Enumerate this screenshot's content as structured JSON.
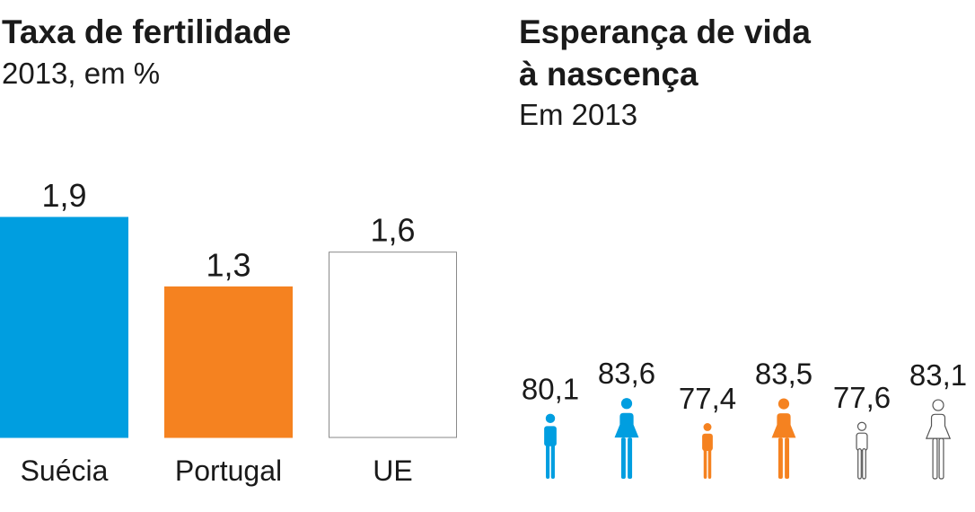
{
  "chart_data": [
    {
      "type": "bar",
      "title": "Taxa de fertilidade",
      "subtitle": "2013, em %",
      "categories": [
        "Suécia",
        "Portugal",
        "UE"
      ],
      "values": [
        1.9,
        1.3,
        1.6
      ],
      "value_labels": [
        "1,9",
        "1,3",
        "1,6"
      ],
      "colors": [
        "#009ee0",
        "#f58220",
        "#ffffff"
      ],
      "ylim": [
        0,
        1.9
      ],
      "xlabel": "",
      "ylabel": ""
    },
    {
      "type": "pictogram",
      "title_line1": "Esperança de vida",
      "title_line2": "à nascença",
      "subtitle": "Em 2013",
      "groups": [
        {
          "color": "#009ee0",
          "values": [
            80.1,
            83.6
          ],
          "labels": [
            "80,1",
            "83,6"
          ]
        },
        {
          "color": "#f58220",
          "values": [
            77.4,
            83.5
          ],
          "labels": [
            "77,4",
            "83,5"
          ]
        },
        {
          "color": "#ffffff",
          "values": [
            77.6,
            83.1
          ],
          "labels": [
            "77,6",
            "83,1"
          ]
        }
      ],
      "figures": [
        "male-icon",
        "female-icon"
      ]
    }
  ]
}
